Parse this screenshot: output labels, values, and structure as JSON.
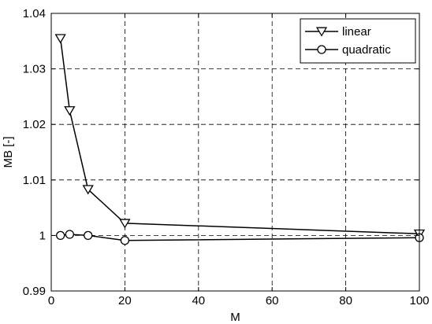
{
  "chart_data": {
    "type": "line",
    "title": "",
    "xlabel": "M",
    "ylabel": "MB  [-]",
    "xlim": [
      0,
      100
    ],
    "ylim": [
      0.99,
      1.04
    ],
    "xticks": [
      0,
      20,
      40,
      60,
      80,
      100
    ],
    "xtick_labels": [
      "0",
      "20",
      "40",
      "60",
      "80",
      "100"
    ],
    "yticks": [
      0.99,
      1.0,
      1.01,
      1.02,
      1.03,
      1.04
    ],
    "ytick_labels": [
      "0.99",
      "1",
      "1.01",
      "1.02",
      "1.03",
      "1.04"
    ],
    "grid": true,
    "legend_position": "top-right",
    "series": [
      {
        "name": "linear",
        "marker": "triangle-down",
        "color": "#000000",
        "x": [
          2.5,
          5,
          10,
          20,
          100
        ],
        "y": [
          1.0355,
          1.0225,
          1.0083,
          1.0022,
          1.0003
        ]
      },
      {
        "name": "quadratic",
        "marker": "circle",
        "color": "#000000",
        "x": [
          2.5,
          5,
          10,
          20,
          100
        ],
        "y": [
          1.0,
          1.0002,
          1.0,
          0.9991,
          0.9996
        ]
      }
    ]
  }
}
